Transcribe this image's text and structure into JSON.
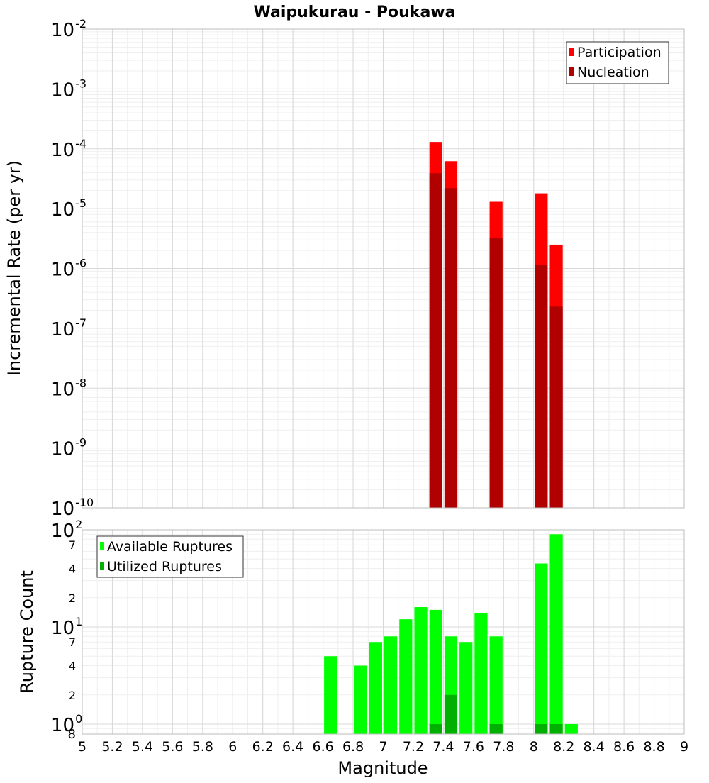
{
  "chart_data": [
    {
      "type": "bar",
      "title": "Waipukurau - Poukawa",
      "xlabel": "",
      "ylabel": "Incremental Rate (per yr)",
      "yscale": "log",
      "xlim": [
        5,
        9
      ],
      "ylim": [
        1e-10,
        0.01
      ],
      "grid": true,
      "legend_position": "top-right",
      "bar_width": 0.1,
      "series": [
        {
          "name": "Participation",
          "color": "#ff0000",
          "x": [
            7.35,
            7.45,
            7.75,
            8.05,
            8.15
          ],
          "values": [
            0.00013,
            6.2e-05,
            1.3e-05,
            1.8e-05,
            2.5e-06
          ]
        },
        {
          "name": "Nucleation",
          "color": "#b00000",
          "x": [
            7.35,
            7.45,
            7.75,
            8.05,
            8.15
          ],
          "values": [
            3.9e-05,
            2.2e-05,
            3.2e-06,
            1.15e-06,
            2.3e-07
          ]
        }
      ]
    },
    {
      "type": "bar",
      "xlabel": "Magnitude",
      "ylabel": "Rupture Count",
      "yscale": "log",
      "xlim": [
        5,
        9
      ],
      "ylim": [
        0.8,
        100
      ],
      "grid": true,
      "legend_position": "top-left",
      "bar_width": 0.1,
      "x_ticks": [
        "5",
        "5.2",
        "5.4",
        "5.6",
        "5.8",
        "6",
        "6.2",
        "6.4",
        "6.6",
        "6.8",
        "7",
        "7.2",
        "7.4",
        "7.6",
        "7.8",
        "8",
        "8.2",
        "8.4",
        "8.6",
        "8.8",
        "9"
      ],
      "y_minor_labels": [
        "7",
        "4",
        "2",
        "7",
        "4",
        "2",
        "8"
      ],
      "series": [
        {
          "name": "Available Ruptures",
          "color": "#00ff00",
          "x": [
            6.65,
            6.85,
            6.95,
            7.05,
            7.15,
            7.25,
            7.35,
            7.45,
            7.55,
            7.65,
            7.75,
            8.05,
            8.15,
            8.25
          ],
          "values": [
            5,
            4,
            7,
            8,
            12,
            16,
            15,
            8,
            7,
            14,
            8,
            45,
            90,
            1
          ]
        },
        {
          "name": "Utilized Ruptures",
          "color": "#00b000",
          "x": [
            7.35,
            7.45,
            7.75,
            8.05,
            8.15
          ],
          "values": [
            1,
            2,
            1,
            1,
            1
          ]
        }
      ]
    }
  ]
}
